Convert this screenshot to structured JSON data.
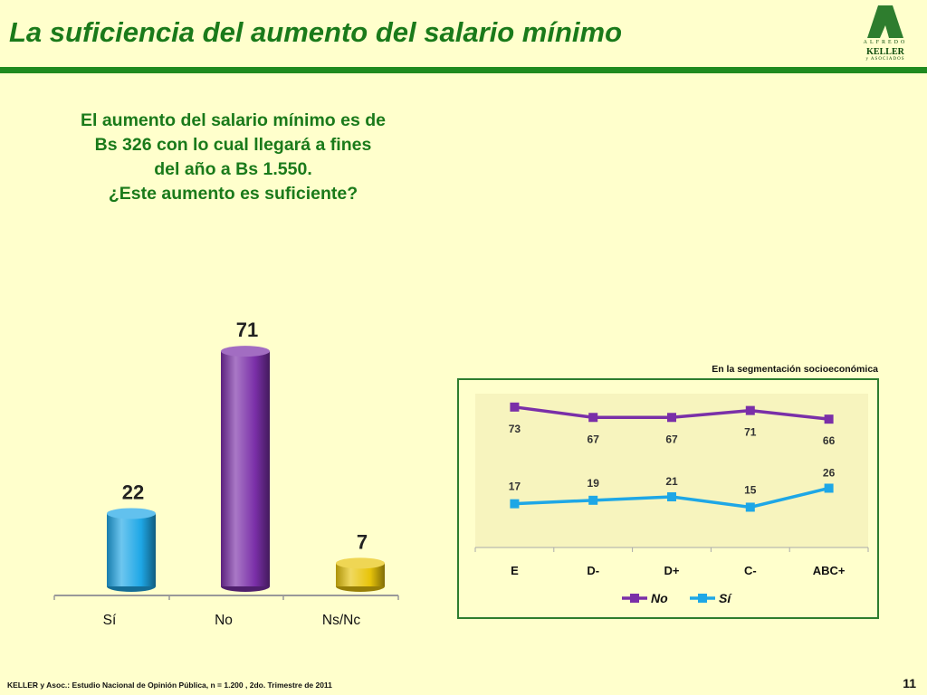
{
  "slide": {
    "title": "La suficiencia del aumento del salario mínimo",
    "question_lines": [
      "El aumento del salario mínimo es de",
      "Bs 326 con lo cual llegará a fines",
      "del año a Bs 1.550.",
      "¿Este aumento es suficiente?"
    ],
    "footer": "KELLER y Asoc.: Estudio Nacional de Opinión Pública, n = 1.200 , 2do. Trimestre de 2011",
    "page_number": "11",
    "logo": {
      "line1": "ALFREDO",
      "line2": "KELLER",
      "line3": "y ASOCIADOS"
    },
    "segment_caption": "En la segmentación socioeconómica",
    "colors": {
      "title_green": "#1a7a1a",
      "bar_green": "#1f8a1f",
      "background": "#FFFFCC"
    }
  },
  "chart_data": [
    {
      "type": "bar",
      "categories": [
        "Sí",
        "No",
        "Ns/Nc"
      ],
      "values": [
        22,
        71,
        7
      ],
      "colors": [
        "#1EA7E6",
        "#7A2FA8",
        "#E8C40A"
      ],
      "title": "",
      "xlabel": "",
      "ylabel": "",
      "ylim": [
        0,
        80
      ],
      "grid": false,
      "data_labels": true
    },
    {
      "type": "line",
      "categories": [
        "E",
        "D-",
        "D+",
        "C-",
        "ABC+"
      ],
      "series": [
        {
          "name": "No",
          "values": [
            73,
            67,
            67,
            71,
            66
          ],
          "color": "#7A2FA8"
        },
        {
          "name": "Sí",
          "values": [
            17,
            19,
            21,
            15,
            26
          ],
          "color": "#1EA7E6"
        }
      ],
      "title": "",
      "xlabel": "",
      "ylabel": "",
      "ylim": [
        0,
        80
      ],
      "grid": false,
      "legend": "bottom",
      "data_labels": true
    }
  ]
}
